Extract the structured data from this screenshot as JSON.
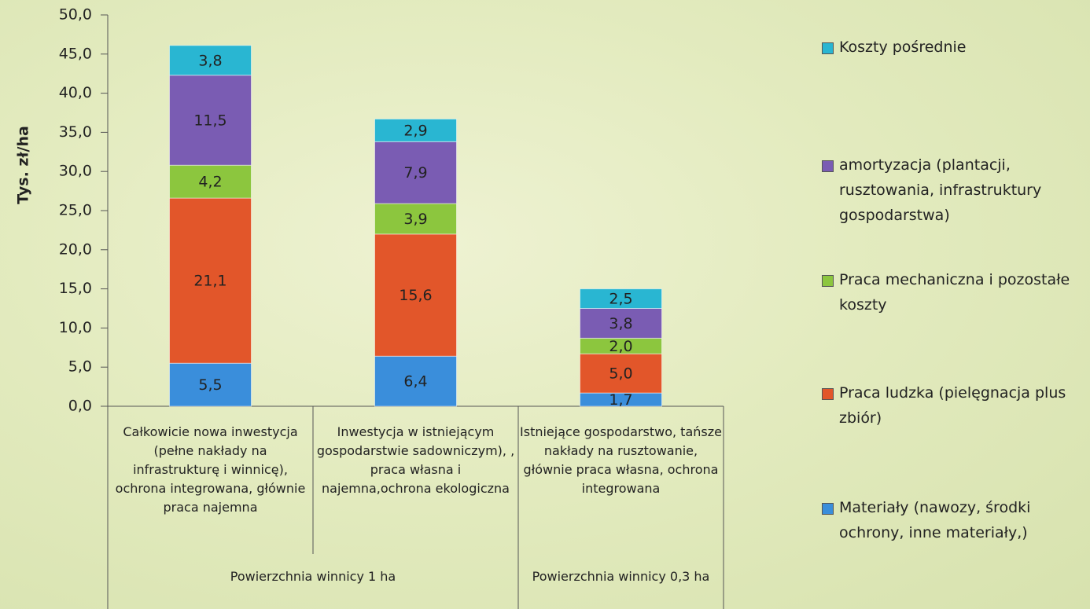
{
  "chart_data": {
    "type": "stacked-bar",
    "y_label": "Tys. zł/ha",
    "ylim": [
      0,
      50
    ],
    "yticks": [
      {
        "value": 0,
        "label": "0,0"
      },
      {
        "value": 5,
        "label": "5,0"
      },
      {
        "value": 10,
        "label": "10,0"
      },
      {
        "value": 15,
        "label": "15,0"
      },
      {
        "value": 20,
        "label": "20,0"
      },
      {
        "value": 25,
        "label": "25,0"
      },
      {
        "value": 30,
        "label": "30,0"
      },
      {
        "value": 35,
        "label": "35,0"
      },
      {
        "value": 40,
        "label": "40,0"
      },
      {
        "value": 45,
        "label": "45,0"
      },
      {
        "value": 50,
        "label": "50,0"
      }
    ],
    "groups": [
      {
        "label": "Powierzchnia winnicy 1 ha",
        "categories": [
          "Całkowicie nowa inwestycja (pełne nakłady na infrastrukturę i winnicę), ochrona integrowana, głównie praca najemna",
          "Inwestycja w istniejącym gospodarstwie sadowniczym), , praca własna i najemna,ochrona ekologiczna"
        ]
      },
      {
        "label": "Powierzchnia winnicy 0,3 ha",
        "categories": [
          "Istniejące gospodarstwo, tańsze nakłady na rusztowanie, głównie praca własna, ochrona integrowana"
        ]
      }
    ],
    "series": [
      {
        "name": "Materiały (nawozy, środki ochrony, inne materiały,)",
        "color": "#3a8edb",
        "values": [
          5.5,
          6.4,
          1.7
        ],
        "value_labels": [
          "5,5",
          "6,4",
          "1,7"
        ]
      },
      {
        "name": "Praca ludzka (pielęgnacja plus zbiór)",
        "color": "#e2562a",
        "values": [
          21.1,
          15.6,
          5.0
        ],
        "value_labels": [
          "21,1",
          "15,6",
          "5,0"
        ]
      },
      {
        "name": "Praca mechaniczna i pozostałe koszty",
        "color": "#8cc63e",
        "values": [
          4.2,
          3.9,
          2.0
        ],
        "value_labels": [
          "4,2",
          "3,9",
          "2,0"
        ]
      },
      {
        "name": "amortyzacja (plantacji, rusztowania, infrastruktury gospodarstwa)",
        "color": "#7a5cb3",
        "values": [
          11.5,
          7.9,
          3.8
        ],
        "value_labels": [
          "11,5",
          "7,9",
          "3,8"
        ]
      },
      {
        "name": "Koszty pośrednie",
        "color": "#29b6d2",
        "values": [
          3.8,
          2.9,
          2.5
        ],
        "value_labels": [
          "3,8",
          "2,9",
          "2,5"
        ]
      }
    ]
  }
}
